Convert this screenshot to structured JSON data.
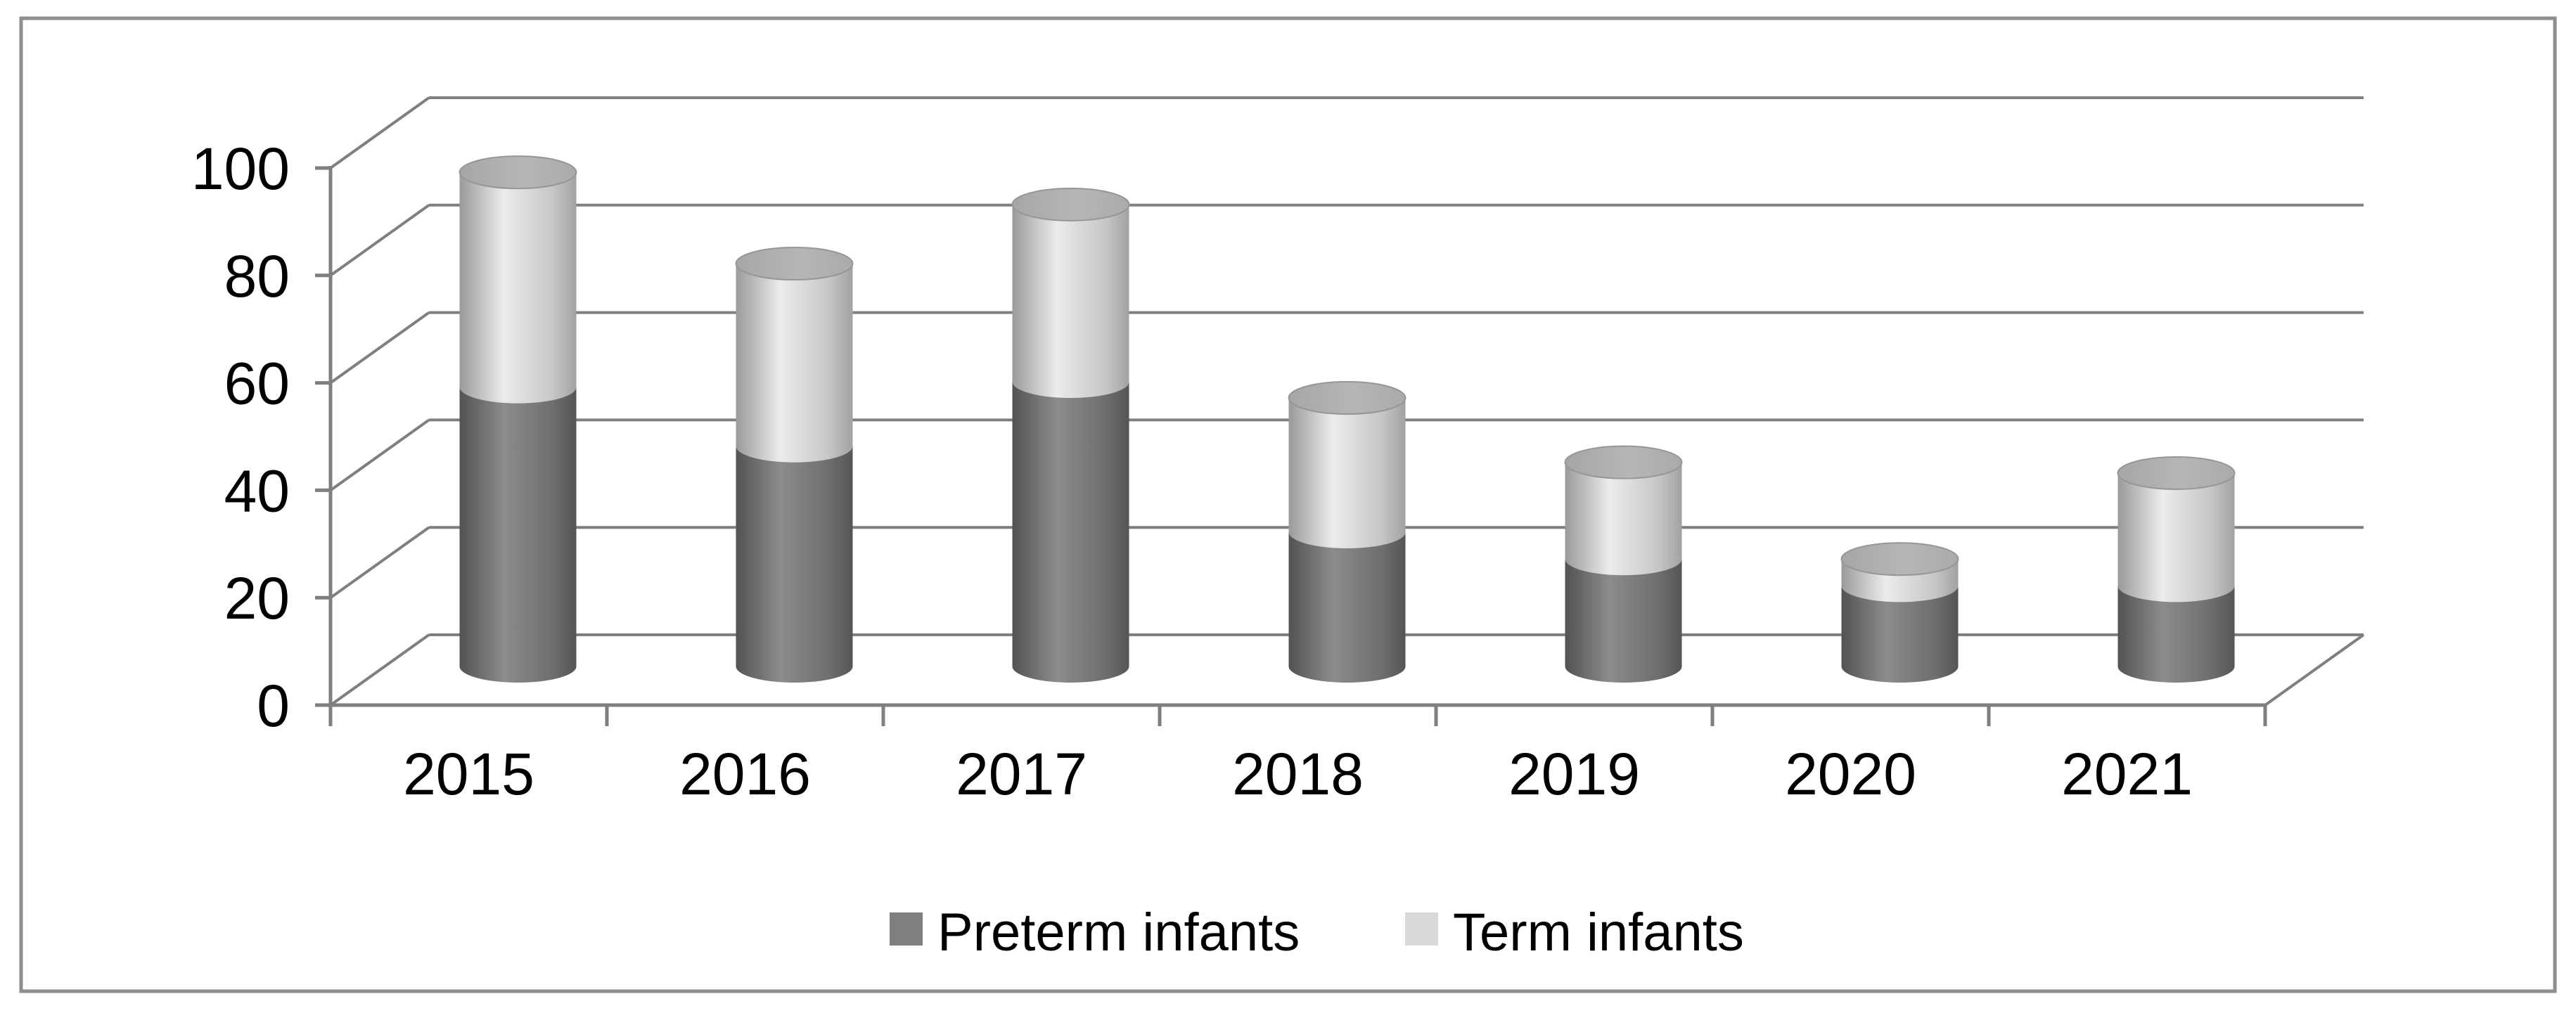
{
  "figure": {
    "background": "#ffffff",
    "border_color": "#8e8e8e"
  },
  "chart_data": {
    "type": "bar",
    "subtype": "3d-stacked-cylinder",
    "title": "",
    "xlabel": "",
    "ylabel": "",
    "categories": [
      "2015",
      "2016",
      "2017",
      "2018",
      "2019",
      "2020",
      "2021"
    ],
    "series": [
      {
        "name": "Preterm infants",
        "color": "#7f7f7f",
        "values": [
          52,
          41,
          53,
          25,
          20,
          15,
          15
        ]
      },
      {
        "name": "Term infants",
        "color": "#d9d9d9",
        "values": [
          40,
          34,
          33,
          25,
          18,
          5,
          21
        ]
      }
    ],
    "totals": [
      92,
      75,
      86,
      50,
      38,
      20,
      36
    ],
    "ylim": [
      0,
      100
    ],
    "y_ticks": [
      "0",
      "20",
      "40",
      "60",
      "80",
      "100"
    ],
    "y_tick_values": [
      0,
      20,
      40,
      60,
      80,
      100
    ],
    "grid": true,
    "legend_position": "bottom"
  },
  "colors": {
    "axis_and_grid": "#7f7f7f",
    "dark_cylinder_edge": "#525252",
    "dark_cylinder_highlight": "#8c8c8c",
    "light_cylinder_edge": "#9a9a9a",
    "light_cylinder_highlight": "#ececec",
    "cylinder_cap": "#adadad",
    "label_text": "#000000"
  }
}
